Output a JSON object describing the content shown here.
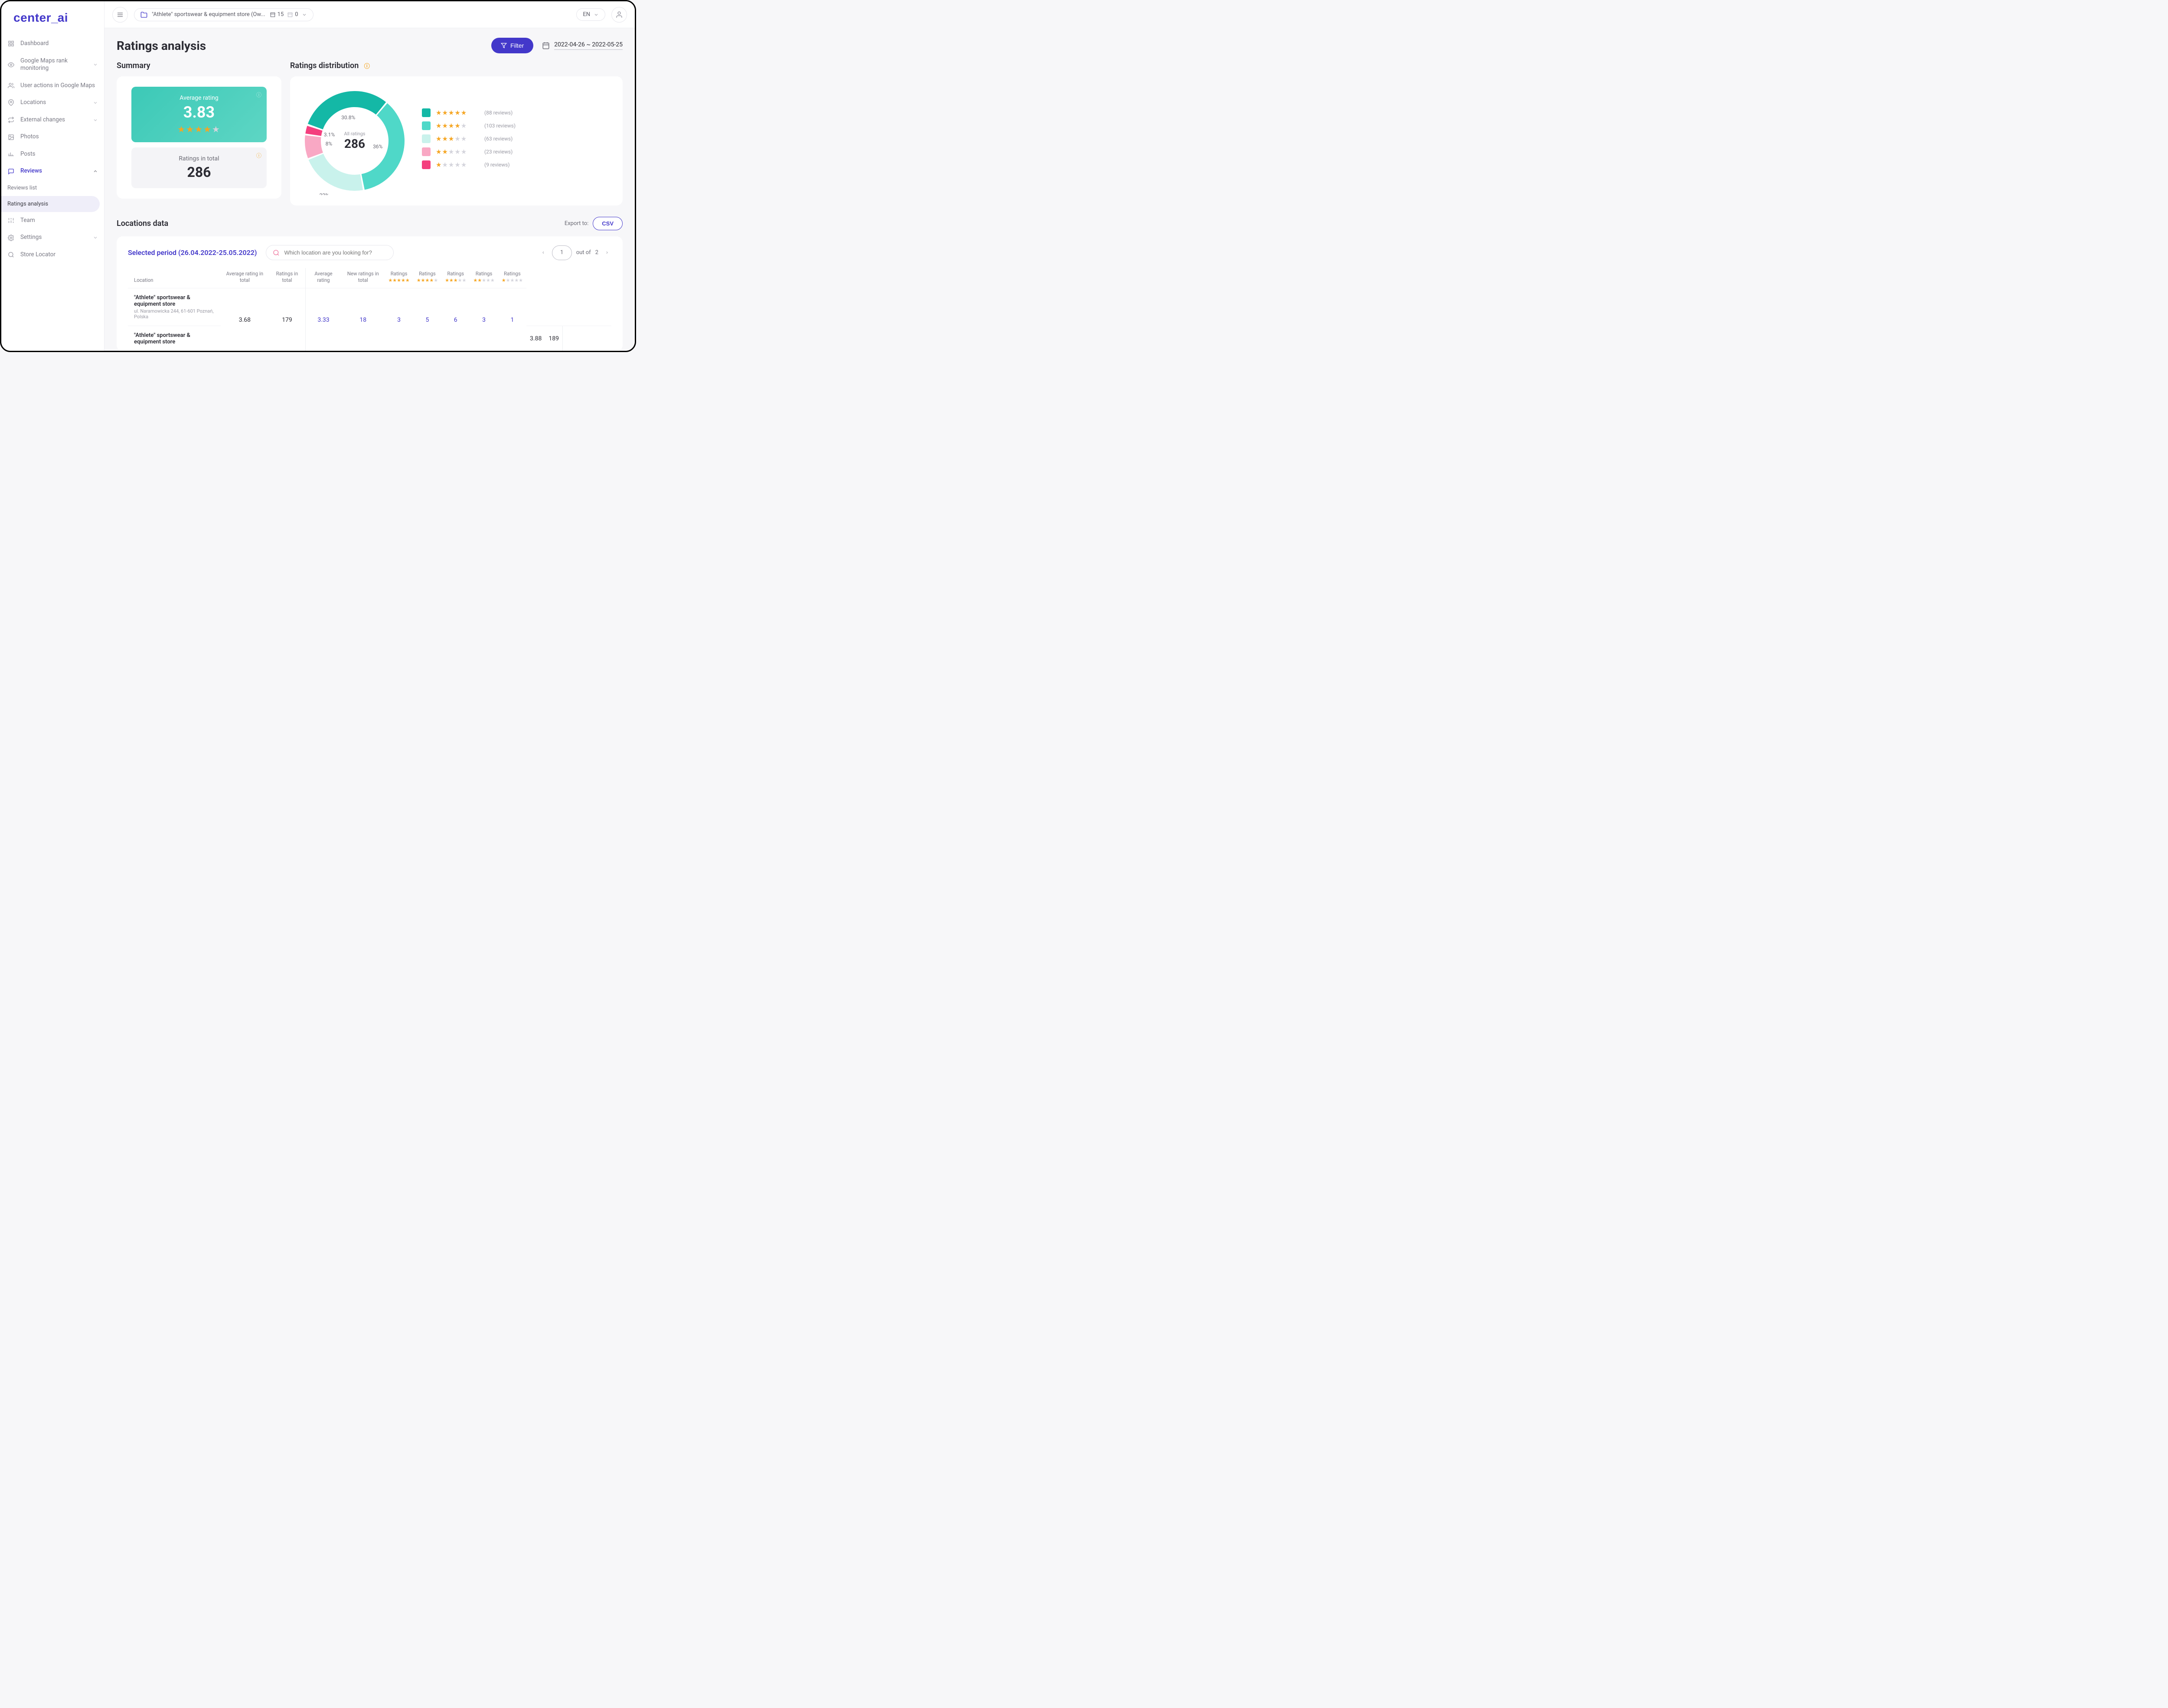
{
  "brand": {
    "name": "center_ai"
  },
  "topbar": {
    "store_name": "\"Athlete\" sportswear & equipment store (Ow...",
    "count1": "15",
    "count2": "0",
    "lang": "EN"
  },
  "sidebar": {
    "items": [
      {
        "label": "Dashboard"
      },
      {
        "label": "Google Maps rank monitoring"
      },
      {
        "label": "User actions in Google Maps"
      },
      {
        "label": "Locations"
      },
      {
        "label": "External changes"
      },
      {
        "label": "Photos"
      },
      {
        "label": "Posts"
      },
      {
        "label": "Reviews"
      },
      {
        "label": "Team"
      },
      {
        "label": "Settings"
      },
      {
        "label": "Store Locator"
      }
    ],
    "reviews_sub": [
      {
        "label": "Reviews list"
      },
      {
        "label": "Ratings analysis"
      }
    ]
  },
  "page": {
    "title": "Ratings analysis",
    "filter_label": "Filter",
    "date_range": "2022-04-26 ~ 2022-05-25"
  },
  "summary": {
    "heading": "Summary",
    "avg_label": "Average rating",
    "avg_value": "3.83",
    "avg_box_gradient": [
      "#3cc9b7",
      "#5ed6c4"
    ],
    "total_label": "Ratings in total",
    "total_value": "286"
  },
  "distribution": {
    "heading": "Ratings distribution",
    "center_label": "All ratings",
    "center_value": "286",
    "donut_type": "donut",
    "donut_background": "#ffffff",
    "slices": [
      {
        "stars": 5,
        "percent": 30.8,
        "pct_label": "30.8%",
        "color": "#14b8a6",
        "reviews": 88
      },
      {
        "stars": 4,
        "percent": 36.0,
        "pct_label": "36%",
        "color": "#4fd8c8",
        "reviews": 103
      },
      {
        "stars": 3,
        "percent": 22.0,
        "pct_label": "22%",
        "color": "#c9f2ec",
        "reviews": 63
      },
      {
        "stars": 2,
        "percent": 8.0,
        "pct_label": "8%",
        "color": "#f9a8c4",
        "reviews": 23
      },
      {
        "stars": 1,
        "percent": 3.1,
        "pct_label": "3.1%",
        "color": "#f43f7e",
        "reviews": 9
      }
    ],
    "legend_count_prefix": "(",
    "legend_count_suffix": " reviews)"
  },
  "locations": {
    "heading": "Locations data",
    "export_label": "Export to:",
    "csv_label": "CSV",
    "period_label": "Selected period (26.04.2022-25.05.2022)",
    "search_placeholder": "Which location are you looking for?",
    "page_current": "1",
    "page_of_label": "out of",
    "page_total": "2",
    "columns": {
      "location": "Location",
      "avg_total": "Average rating in total",
      "ratings_total": "Ratings in total",
      "avg_period": "Average rating",
      "new_ratings": "New ratings in total",
      "ratings_stars": "Ratings"
    },
    "rows": [
      {
        "name": "\"Athlete\" sportswear & equipment store",
        "addr": "ul. Naramowicka 244, 61-601 Poznań, Polska",
        "avg_total": "3.68",
        "ratings_total": "179",
        "avg_period": "3.33",
        "new_ratings": "18",
        "r5": "3",
        "r4": "5",
        "r3": "6",
        "r2": "3",
        "r1": "1"
      },
      {
        "name": "\"Athlete\" sportswear & equipment store",
        "addr": "",
        "avg_total": "3.88",
        "ratings_total": "189",
        "avg_period": "",
        "new_ratings": "",
        "r5": "",
        "r4": "",
        "r3": "",
        "r2": "",
        "r1": ""
      }
    ]
  },
  "colors": {
    "brand": "#4338ca",
    "star_fill": "#f5a623",
    "star_empty": "#d4d4dc",
    "warn_icon": "#f5a623",
    "card_bg": "#ffffff",
    "page_bg": "#f7f7f9",
    "border": "#edeef2"
  }
}
